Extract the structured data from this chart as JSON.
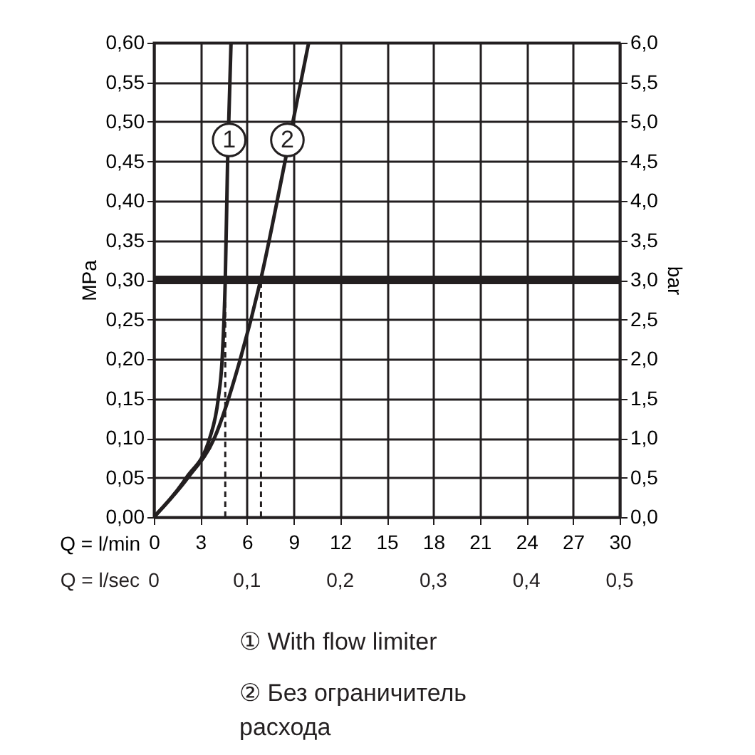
{
  "chart_data": {
    "type": "line",
    "xlabel": "Q = l/min",
    "x2label": "Q = l/sec",
    "ylabel": "MPa",
    "y2label": "bar",
    "series": [
      {
        "color": "#231f20",
        "x": [
          0,
          2.1,
          3.6,
          4.15,
          4.4,
          4.6,
          4.75,
          4.97
        ],
        "values": [
          0,
          0.05,
          0.1,
          0.15,
          0.2,
          0.3,
          0.45,
          0.6
        ]
      },
      {
        "color": "#231f20",
        "x": [
          0,
          2.2,
          3.9,
          5.57,
          6.88,
          8.45,
          9.97
        ],
        "values": [
          0,
          0.05,
          0.1,
          0.2,
          0.3,
          0.45,
          0.6
        ]
      }
    ],
    "xlim": [
      0,
      30
    ],
    "xticks": [
      0,
      3,
      6,
      9,
      12,
      15,
      18,
      21,
      24,
      27,
      30
    ],
    "x2lim": [
      0,
      0.5
    ],
    "x2ticks": [
      0,
      {
        "value": 0.1,
        "label": "0,1"
      },
      {
        "value": 0.2,
        "label": "0,2"
      },
      {
        "value": 0.3,
        "label": "0,3"
      },
      {
        "value": 0.4,
        "label": "0,4"
      },
      {
        "value": 0.5,
        "label": "0,5"
      }
    ],
    "ylim": [
      0,
      0.6
    ],
    "yticks": [
      {
        "value": 0,
        "label": "0,00"
      },
      {
        "value": 0.05,
        "label": "0,05"
      },
      {
        "value": 0.1,
        "label": "0,10"
      },
      {
        "value": 0.15,
        "label": "0,15"
      },
      {
        "value": 0.2,
        "label": "0,20"
      },
      {
        "value": 0.25,
        "label": "0,25"
      },
      {
        "value": 0.3,
        "label": "0,30"
      },
      {
        "value": 0.35,
        "label": "0,35"
      },
      {
        "value": 0.4,
        "label": "0,40"
      },
      {
        "value": 0.45,
        "label": "0,45"
      },
      {
        "value": 0.5,
        "label": "0,50"
      },
      {
        "value": 0.55,
        "label": "0,55"
      },
      {
        "value": 0.6,
        "label": "0,60"
      }
    ],
    "y2lim": [
      0,
      6
    ],
    "y2ticks": [
      {
        "value": 0,
        "label": "0,0"
      },
      {
        "value": 0.5,
        "label": "0,5"
      },
      {
        "value": 1,
        "label": "1,0"
      },
      {
        "value": 1.5,
        "label": "1,5"
      },
      {
        "value": 2,
        "label": "2,0"
      },
      {
        "value": 2.5,
        "label": "2,5"
      },
      {
        "value": 3,
        "label": "3,0"
      },
      {
        "value": 3.5,
        "label": "3,5"
      },
      {
        "value": 4,
        "label": "4,0"
      },
      {
        "value": 4.5,
        "label": "4,5"
      },
      {
        "value": 5,
        "label": "5,0"
      },
      {
        "value": 5.5,
        "label": "5,5"
      },
      {
        "value": 6,
        "label": "6,0"
      }
    ],
    "ref_lines": [
      {
        "axis": "y",
        "value": 0.3,
        "color": "#231f20",
        "line_style": "solid"
      },
      {
        "axis": "x",
        "value": 4.6,
        "color": "#231f20",
        "line_style": "dashed"
      },
      {
        "axis": "x",
        "value": 6.9,
        "color": "#231f20",
        "line_style": "dashed"
      }
    ],
    "annotations": [
      {
        "text": "1",
        "x": 4.85,
        "y": 0.477
      },
      {
        "text": "2",
        "x": 8.6,
        "y": 0.477
      },
      "① With flow limiter",
      "② Без ограничитель расхода"
    ],
    "grid": true,
    "line_style": "solid",
    "marker": "none"
  }
}
